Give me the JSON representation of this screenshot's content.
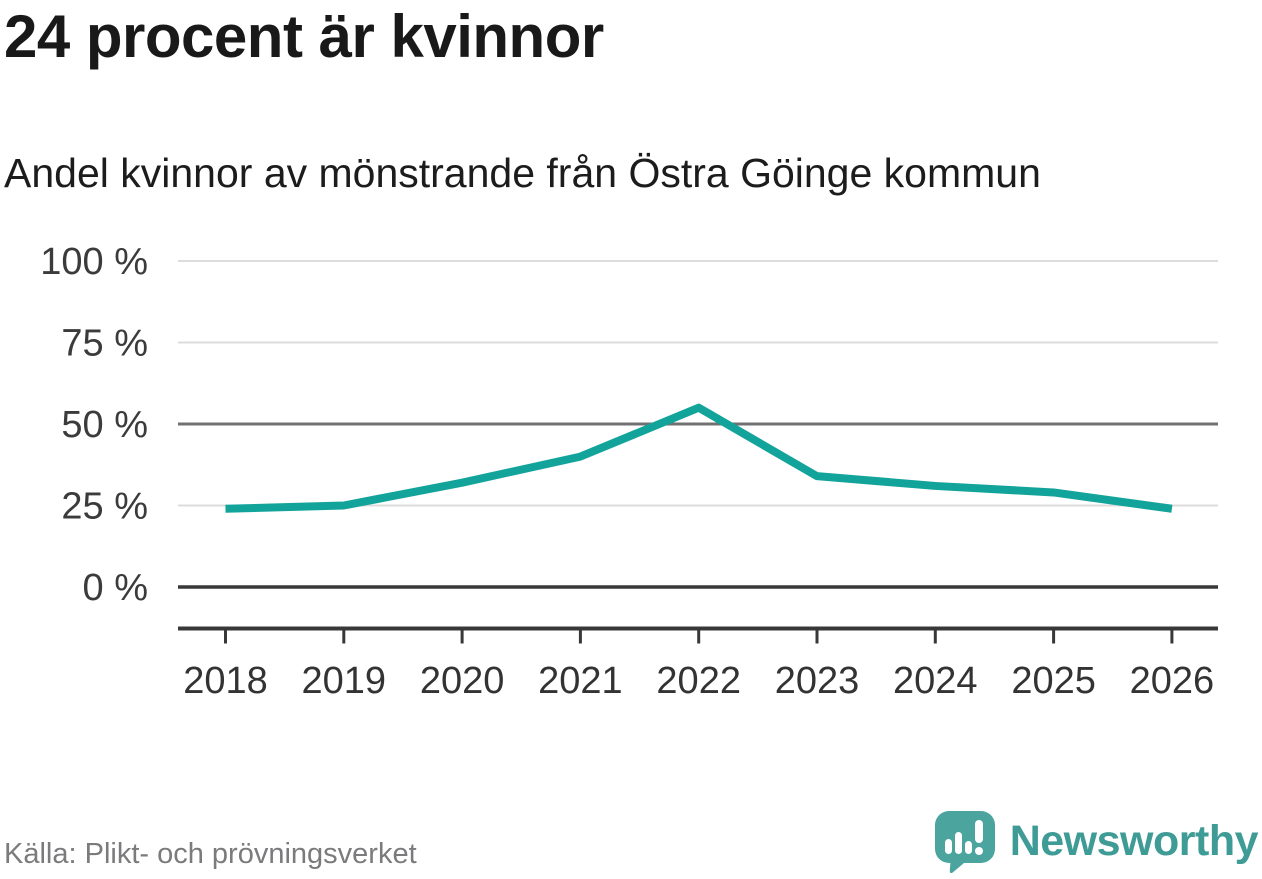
{
  "header": {
    "title": "24 procent är kvinnor",
    "subtitle": "Andel kvinnor av mönstrande från Östra Göinge kommun"
  },
  "chart_data": {
    "type": "line",
    "title": "24 procent är kvinnor",
    "subtitle": "Andel kvinnor av mönstrande från Östra Göinge kommun",
    "categories": [
      "2018",
      "2019",
      "2020",
      "2021",
      "2022",
      "2023",
      "2024",
      "2025",
      "2026"
    ],
    "series": [
      {
        "name": "Andel kvinnor av mönstrande",
        "values": [
          24,
          25,
          32,
          40,
          55,
          34,
          31,
          29,
          24
        ]
      }
    ],
    "unit": "%",
    "xlabel": "",
    "ylabel": "",
    "ylim": [
      0,
      100
    ],
    "y_ticks": [
      {
        "value": 0,
        "label": "0 %"
      },
      {
        "value": 25,
        "label": "25 %"
      },
      {
        "value": 50,
        "label": "50 %"
      },
      {
        "value": 75,
        "label": "75 %"
      },
      {
        "value": 100,
        "label": "100 %"
      }
    ],
    "grid": true,
    "legend": "none",
    "colors": {
      "line": "#12A39B",
      "grid_light": "#DCDCDC",
      "grid_emphasis_50": "#707070",
      "baseline_0": "#383838",
      "axis": "#383838",
      "tick_label": "#333333",
      "y_label": "#3b3b3b"
    }
  },
  "footer": {
    "source": "Källa: Plikt- och prövningsverket",
    "brand_name": "Newsworthy",
    "brand_color": "#3f9b95",
    "brand_icon": "newsworthy-speech-bubble-barchart-icon",
    "brand_icon_color": "#4BA49E"
  }
}
